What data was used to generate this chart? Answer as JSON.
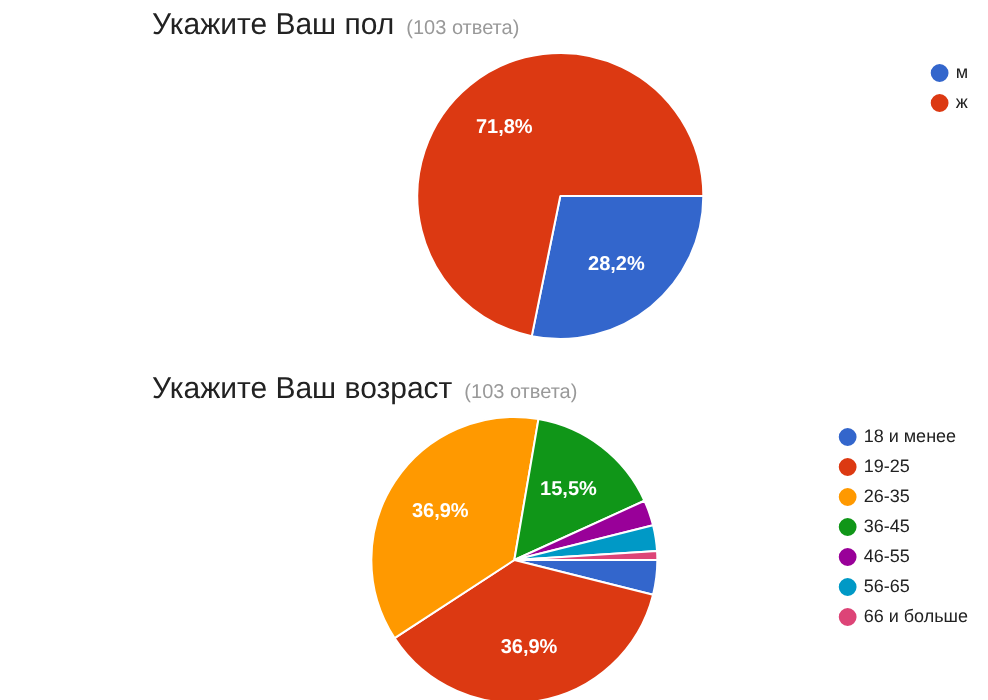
{
  "chart_data": [
    {
      "type": "pie",
      "title": "Укажите Ваш пол",
      "subtitle": "(103 ответа)",
      "categories": [
        "м",
        "ж"
      ],
      "values": [
        28.2,
        71.8
      ],
      "colors": [
        "#3366cc",
        "#dc3912"
      ],
      "value_labels": [
        "28,2%",
        "71,8%"
      ],
      "legend": "right"
    },
    {
      "type": "pie",
      "title": "Укажите Ваш возраст",
      "subtitle": "(103 ответа)",
      "categories": [
        "18 и менее",
        "19-25",
        "26-35",
        "36-45",
        "46-55",
        "56-65",
        "66 и больше"
      ],
      "values": [
        3.9,
        36.9,
        36.9,
        15.5,
        2.9,
        2.9,
        1.0
      ],
      "colors": [
        "#3366cc",
        "#dc3912",
        "#ff9900",
        "#109618",
        "#990099",
        "#0099c6",
        "#dd4477"
      ],
      "value_labels": [
        null,
        "36,9%",
        "36,9%",
        "15,5%",
        null,
        null,
        null
      ],
      "legend": "right"
    }
  ]
}
